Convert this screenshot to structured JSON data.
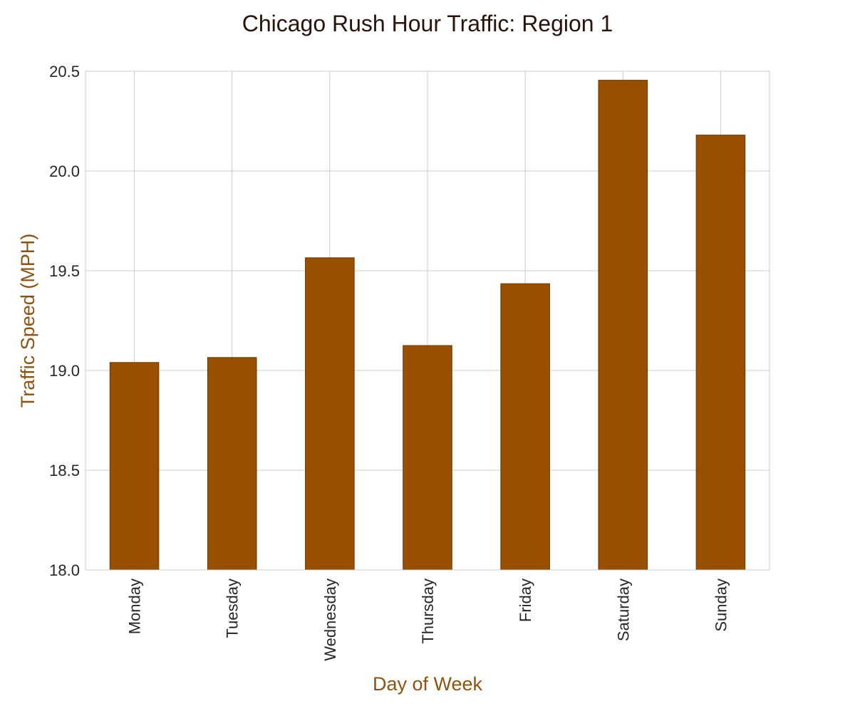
{
  "chart_data": {
    "type": "bar",
    "title": "Chicago Rush Hour Traffic: Region 1",
    "xlabel": "Day of Week",
    "ylabel": "Traffic Speed (MPH)",
    "categories": [
      "Monday",
      "Tuesday",
      "Wednesday",
      "Thursday",
      "Friday",
      "Saturday",
      "Sunday"
    ],
    "values": [
      19.04,
      19.065,
      19.565,
      19.125,
      19.435,
      20.455,
      20.18
    ],
    "ylim": [
      18.0,
      20.5
    ],
    "yticks": [
      "18.0",
      "18.5",
      "19.0",
      "19.5",
      "20.0",
      "20.5"
    ],
    "grid": true,
    "legend": "none"
  },
  "colors": {
    "bar_fill": "#994f00",
    "bar_stroke": "#6b3a00",
    "title": "#2b130a",
    "axis_label": "#8c5410",
    "tick_label": "#262626",
    "grid": "#cccccc",
    "frame": "#cccccc"
  }
}
